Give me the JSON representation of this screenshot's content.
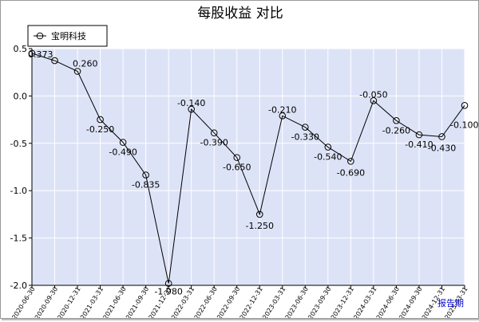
{
  "chart_data": {
    "type": "line",
    "title": "每股收益  对比",
    "x": [
      "2020-06-30",
      "2020-09-30",
      "2020-12-31",
      "2021-03-31",
      "2021-06-30",
      "2021-09-30",
      "2021-12-31",
      "2022-03-31",
      "2022-06-30",
      "2022-09-30",
      "2022-12-31",
      "2023-03-31",
      "2023-06-30",
      "2023-09-30",
      "2023-12-31",
      "2024-03-31",
      "2024-06-30",
      "2024-09-30",
      "2024-12-31",
      "2025-03-31"
    ],
    "series": [
      {
        "name": "宝明科技",
        "values": [
          0.45,
          0.373,
          0.26,
          -0.25,
          -0.49,
          -0.835,
          -1.98,
          -0.14,
          -0.39,
          -0.65,
          -1.25,
          -0.21,
          -0.33,
          -0.54,
          -0.69,
          -0.05,
          -0.26,
          -0.41,
          -0.43,
          -0.1
        ],
        "labels": [
          "",
          "0.373",
          "0.260",
          "-0.250",
          "-0.490",
          "-0.835",
          "-1.980",
          "-0.140",
          "-0.390",
          "-0.650",
          "-1.250",
          "-0.210",
          "-0.330",
          "-0.540",
          "-0.690",
          "-0.050",
          "-0.260",
          "-0.410",
          "-0.430",
          "-0.100"
        ]
      }
    ],
    "ylim": [
      -2.0,
      0.5
    ],
    "yticks": [
      "0.5",
      "0.0",
      "-0.5",
      "-1.0",
      "-1.5",
      "-2.0"
    ],
    "xlabel": "报告期",
    "grid": true,
    "legend": "top-left"
  },
  "colors": {
    "plot_background": "#dde3f7",
    "grid": "#ffffff",
    "line": "#000000",
    "xlabel": "#0000cc"
  }
}
